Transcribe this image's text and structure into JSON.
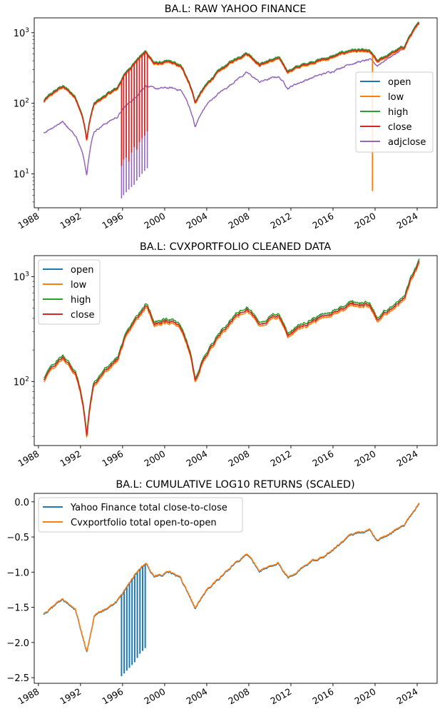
{
  "chart_data": [
    {
      "type": "line",
      "title": "BA.L: RAW YAHOO FINANCE",
      "xlabel": "",
      "ylabel": "",
      "yscale": "log",
      "xlim": [
        1987.6,
        2025.9
      ],
      "ylim_log10": [
        0.52,
        3.21
      ],
      "y_tick_labels": [
        "10^1",
        "10^2",
        "10^3"
      ],
      "x_tick_labels": [
        "1988",
        "1992",
        "1996",
        "2000",
        "2004",
        "2008",
        "2012",
        "2016",
        "2020",
        "2024"
      ],
      "legend": "center-right",
      "series_anchor_points": {
        "price": [
          [
            1988.5,
            105
          ],
          [
            1990.3,
            172
          ],
          [
            1991.5,
            120
          ],
          [
            1992.6,
            29
          ],
          [
            1993.3,
            95
          ],
          [
            1995.5,
            160
          ],
          [
            1997.2,
            380
          ],
          [
            1998.2,
            530
          ],
          [
            1999.0,
            360
          ],
          [
            2000.5,
            380
          ],
          [
            2001.5,
            330
          ],
          [
            2002.9,
            100
          ],
          [
            2004.0,
            180
          ],
          [
            2006.0,
            350
          ],
          [
            2007.8,
            510
          ],
          [
            2009.0,
            350
          ],
          [
            2010.8,
            430
          ],
          [
            2011.7,
            280
          ],
          [
            2014.0,
            380
          ],
          [
            2015.8,
            440
          ],
          [
            2017.8,
            560
          ],
          [
            2019.5,
            530
          ],
          [
            2020.2,
            380
          ],
          [
            2021.5,
            500
          ],
          [
            2022.8,
            620
          ],
          [
            2024.2,
            1330
          ]
        ],
        "adjclose": [
          [
            1988.5,
            38
          ],
          [
            1990.3,
            55
          ],
          [
            1991.6,
            33
          ],
          [
            1992.6,
            9.5
          ],
          [
            1993.3,
            40
          ],
          [
            1995.5,
            64
          ],
          [
            1997.2,
            120
          ],
          [
            1998.2,
            180
          ],
          [
            1999.0,
            160
          ],
          [
            2000.5,
            165
          ],
          [
            2001.5,
            155
          ],
          [
            2002.9,
            45
          ],
          [
            2004.0,
            95
          ],
          [
            2006.0,
            170
          ],
          [
            2007.8,
            270
          ],
          [
            2009.0,
            200
          ],
          [
            2010.8,
            240
          ],
          [
            2011.7,
            165
          ],
          [
            2014.0,
            230
          ],
          [
            2015.8,
            280
          ],
          [
            2017.8,
            370
          ],
          [
            2019.5,
            410
          ],
          [
            2020.2,
            340
          ],
          [
            2021.5,
            460
          ],
          [
            2022.8,
            600
          ],
          [
            2024.2,
            1330
          ]
        ]
      },
      "anomalies": {
        "price_spike_years": [
          1995.9,
          1996.1,
          1996.35,
          1996.6,
          1996.85,
          1997.1,
          1997.35,
          1997.6,
          1997.85,
          1998.1,
          1998.35
        ],
        "price_spike_lows": [
          13,
          16,
          17,
          15,
          20,
          24,
          22,
          28,
          32,
          35,
          40
        ],
        "adjclose_spike_lows": [
          4.5,
          5,
          5.5,
          6,
          6.5,
          7,
          8,
          9,
          10,
          11,
          12
        ],
        "low_spike_year": 2019.75,
        "low_spike_value": 5.7
      },
      "series": [
        {
          "name": "open",
          "color": "#1f77b4"
        },
        {
          "name": "low",
          "color": "#ff7f0e"
        },
        {
          "name": "high",
          "color": "#2ca02c"
        },
        {
          "name": "close",
          "color": "#d62728"
        },
        {
          "name": "adjclose",
          "color": "#9467bd"
        }
      ]
    },
    {
      "type": "line",
      "title": "BA.L: CVXPORTFOLIO CLEANED DATA",
      "xlabel": "",
      "ylabel": "",
      "yscale": "log",
      "xlim": [
        1987.6,
        2025.9
      ],
      "ylim_log10": [
        1.39,
        3.2
      ],
      "y_tick_labels": [
        "10^2",
        "10^3"
      ],
      "x_tick_labels": [
        "1988",
        "1992",
        "1996",
        "2000",
        "2004",
        "2008",
        "2012",
        "2016",
        "2020",
        "2024"
      ],
      "legend": "top-left",
      "series_anchor_points": {
        "price": [
          [
            1988.5,
            105
          ],
          [
            1990.3,
            172
          ],
          [
            1991.5,
            120
          ],
          [
            1992.6,
            29
          ],
          [
            1993.3,
            95
          ],
          [
            1995.5,
            160
          ],
          [
            1997.2,
            380
          ],
          [
            1998.2,
            530
          ],
          [
            1999.0,
            360
          ],
          [
            2000.5,
            380
          ],
          [
            2001.5,
            330
          ],
          [
            2002.9,
            100
          ],
          [
            2004.0,
            180
          ],
          [
            2006.0,
            350
          ],
          [
            2007.8,
            510
          ],
          [
            2009.0,
            350
          ],
          [
            2010.8,
            430
          ],
          [
            2011.7,
            280
          ],
          [
            2014.0,
            380
          ],
          [
            2015.8,
            440
          ],
          [
            2017.8,
            560
          ],
          [
            2019.5,
            530
          ],
          [
            2020.2,
            380
          ],
          [
            2021.5,
            500
          ],
          [
            2022.8,
            620
          ],
          [
            2024.2,
            1330
          ]
        ]
      },
      "series": [
        {
          "name": "open",
          "color": "#1f77b4"
        },
        {
          "name": "low",
          "color": "#ff7f0e"
        },
        {
          "name": "high",
          "color": "#2ca02c"
        },
        {
          "name": "close",
          "color": "#d62728"
        }
      ]
    },
    {
      "type": "line",
      "title": "BA.L: CUMULATIVE LOG10 RETURNS (SCALED)",
      "xlabel": "",
      "ylabel": "",
      "xlim": [
        1987.6,
        2025.9
      ],
      "ylim": [
        -2.58,
        0.12
      ],
      "y_tick_labels": [
        "0.0",
        "−0.5",
        "−1.0",
        "−1.5",
        "−2.0",
        "−2.5"
      ],
      "y_tick_values": [
        0.0,
        -0.5,
        -1.0,
        -1.5,
        -2.0,
        -2.5
      ],
      "x_tick_labels": [
        "1988",
        "1992",
        "1996",
        "2000",
        "2004",
        "2008",
        "2012",
        "2016",
        "2020",
        "2024"
      ],
      "legend": "top-left",
      "series_anchor_points": {
        "cumulative": [
          [
            1988.5,
            -1.6
          ],
          [
            1990.3,
            -1.38
          ],
          [
            1991.5,
            -1.53
          ],
          [
            1992.6,
            -2.13
          ],
          [
            1993.3,
            -1.62
          ],
          [
            1995.5,
            -1.4
          ],
          [
            1997.2,
            -1.02
          ],
          [
            1998.2,
            -0.87
          ],
          [
            1999.0,
            -1.05
          ],
          [
            2000.5,
            -1.0
          ],
          [
            2001.5,
            -1.07
          ],
          [
            2002.9,
            -1.5
          ],
          [
            2004.0,
            -1.25
          ],
          [
            2006.0,
            -0.97
          ],
          [
            2007.8,
            -0.72
          ],
          [
            2009.0,
            -0.98
          ],
          [
            2010.8,
            -0.86
          ],
          [
            2011.7,
            -1.08
          ],
          [
            2014.0,
            -0.85
          ],
          [
            2015.8,
            -0.7
          ],
          [
            2017.8,
            -0.45
          ],
          [
            2019.5,
            -0.4
          ],
          [
            2020.2,
            -0.55
          ],
          [
            2021.5,
            -0.43
          ],
          [
            2022.8,
            -0.33
          ],
          [
            2024.2,
            0.0
          ]
        ]
      },
      "anomalies": {
        "spike_years": [
          1995.9,
          1996.15,
          1996.4,
          1996.65,
          1996.9,
          1997.15,
          1997.4,
          1997.65,
          1997.9,
          1998.15
        ],
        "spike_lows": [
          -2.48,
          -2.44,
          -2.4,
          -2.36,
          -2.32,
          -2.28,
          -2.22,
          -2.16,
          -2.12,
          -2.08
        ]
      },
      "series": [
        {
          "name": "Yahoo Finance total close-to-close",
          "color": "#1f77b4"
        },
        {
          "name": "Cvxportfolio total open-to-open",
          "color": "#ff7f0e"
        }
      ]
    }
  ]
}
